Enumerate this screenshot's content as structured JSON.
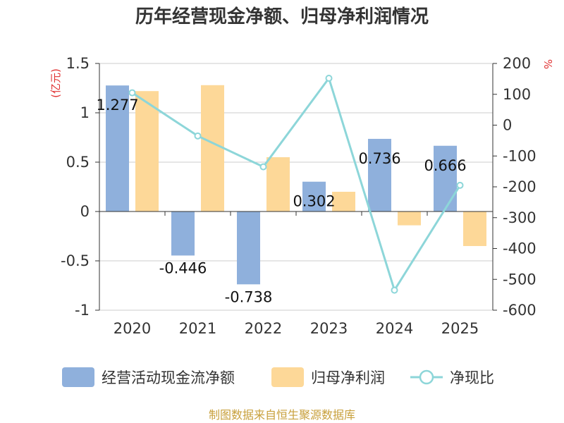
{
  "chart_data": {
    "type": "bar",
    "title": "历年经营现金净额、归母净利润情况",
    "categories": [
      "2020",
      "2021",
      "2022",
      "2023",
      "2024",
      "2025"
    ],
    "series": [
      {
        "name": "经营活动现金流净额",
        "type": "bar",
        "axis": "left",
        "color": "#8fb0dc",
        "values": [
          1.277,
          -0.446,
          -0.738,
          0.302,
          0.736,
          0.666
        ],
        "labels": [
          "1.277",
          "-0.446",
          "-0.738",
          "0.302",
          "0.736",
          "0.666"
        ]
      },
      {
        "name": "归母净利润",
        "type": "bar",
        "axis": "left",
        "color": "#fdd898",
        "values": [
          1.22,
          1.28,
          0.55,
          0.2,
          -0.14,
          -0.35
        ]
      },
      {
        "name": "净现比",
        "type": "line",
        "axis": "right",
        "color": "#8dd6d9",
        "values": [
          105,
          -35,
          -135,
          152,
          -535,
          -195
        ]
      }
    ],
    "y_left": {
      "unit": "(亿元)",
      "ylim": [
        -1,
        1.5
      ],
      "ticks": [
        "1.5",
        "1",
        "0.5",
        "0",
        "-0.5",
        "-1"
      ],
      "tick_values": [
        1.5,
        1,
        0.5,
        0,
        -0.5,
        -1
      ]
    },
    "y_right": {
      "unit": "%",
      "ylim": [
        -600,
        200
      ],
      "ticks": [
        "200",
        "100",
        "0",
        "-100",
        "-200",
        "-300",
        "-400",
        "-500",
        "-600"
      ],
      "tick_values": [
        200,
        100,
        0,
        -100,
        -200,
        -300,
        -400,
        -500,
        -600
      ]
    },
    "grid": true,
    "legend_position": "bottom"
  },
  "source": "制图数据来自恒生聚源数据库"
}
